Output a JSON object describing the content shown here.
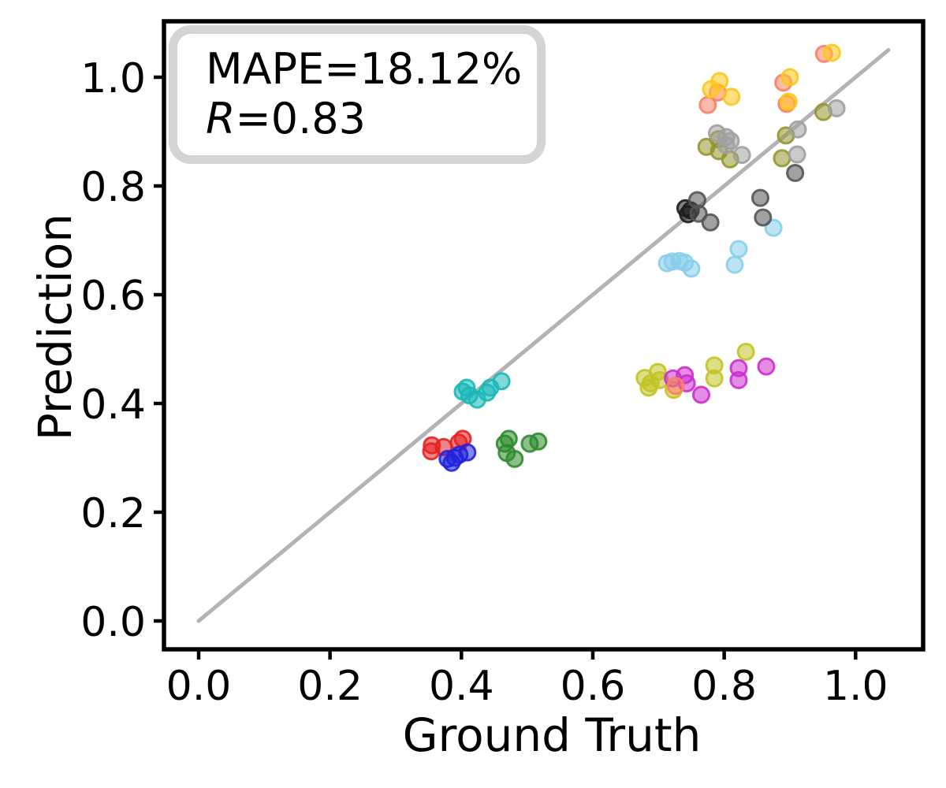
{
  "figure": {
    "xlabel": "Ground Truth",
    "ylabel": "Prediction"
  },
  "annotation": {
    "line1": "MAPE=18.12%",
    "r_symbol": "R",
    "r_value": "=0.83",
    "box_border_color": "#d4d4d4"
  },
  "chart_data": {
    "type": "scatter",
    "title": "",
    "xlabel": "Ground Truth",
    "ylabel": "Prediction",
    "xlim": [
      -0.05,
      1.1
    ],
    "ylim": [
      -0.05,
      1.1
    ],
    "xticks": [
      "0.0",
      "0.2",
      "0.4",
      "0.6",
      "0.8",
      "1.0"
    ],
    "yticks": [
      "0.0",
      "0.2",
      "0.4",
      "0.6",
      "0.8",
      "1.0"
    ],
    "grid": false,
    "legend": "none",
    "stats": {
      "mape_percent": 18.12,
      "r": 0.83
    },
    "identity_line": {
      "from": [
        0,
        0
      ],
      "to": [
        1.05,
        1.05
      ],
      "color": "#b3b3b3"
    },
    "marker": {
      "radius_px": 10,
      "fill_opacity": 0.55,
      "stroke_opacity": 0.9,
      "stroke_width": 3
    },
    "axis_color": "#000000",
    "series": [
      {
        "name": "red",
        "color": "#e62222",
        "points": [
          [
            0.355,
            0.323
          ],
          [
            0.354,
            0.312
          ],
          [
            0.373,
            0.32
          ],
          [
            0.396,
            0.328
          ],
          [
            0.402,
            0.335
          ]
        ]
      },
      {
        "name": "blue",
        "color": "#2222dd",
        "points": [
          [
            0.379,
            0.298
          ],
          [
            0.385,
            0.291
          ],
          [
            0.39,
            0.3
          ],
          [
            0.397,
            0.306
          ],
          [
            0.409,
            0.31
          ]
        ]
      },
      {
        "name": "green",
        "color": "#2e8b2e",
        "points": [
          [
            0.466,
            0.326
          ],
          [
            0.469,
            0.309
          ],
          [
            0.472,
            0.335
          ],
          [
            0.481,
            0.298
          ],
          [
            0.504,
            0.326
          ],
          [
            0.517,
            0.33
          ]
        ]
      },
      {
        "name": "cyan",
        "color": "#1ab8b8",
        "points": [
          [
            0.402,
            0.422
          ],
          [
            0.408,
            0.429
          ],
          [
            0.412,
            0.415
          ],
          [
            0.424,
            0.407
          ],
          [
            0.439,
            0.42
          ],
          [
            0.444,
            0.429
          ],
          [
            0.461,
            0.441
          ]
        ]
      },
      {
        "name": "yellow",
        "color": "#c3c326",
        "points": [
          [
            0.679,
            0.447
          ],
          [
            0.685,
            0.429
          ],
          [
            0.688,
            0.437
          ],
          [
            0.699,
            0.458
          ],
          [
            0.702,
            0.443
          ],
          [
            0.723,
            0.425
          ],
          [
            0.785,
            0.47
          ],
          [
            0.785,
            0.446
          ],
          [
            0.833,
            0.495
          ]
        ]
      },
      {
        "name": "magenta",
        "color": "#cc2fcc",
        "points": [
          [
            0.722,
            0.446
          ],
          [
            0.74,
            0.452
          ],
          [
            0.743,
            0.437
          ],
          [
            0.765,
            0.416
          ],
          [
            0.822,
            0.465
          ],
          [
            0.822,
            0.443
          ],
          [
            0.864,
            0.468
          ]
        ]
      },
      {
        "name": "skyblue",
        "color": "#87ceeb",
        "points": [
          [
            0.713,
            0.658
          ],
          [
            0.721,
            0.661
          ],
          [
            0.732,
            0.662
          ],
          [
            0.74,
            0.659
          ],
          [
            0.75,
            0.648
          ],
          [
            0.816,
            0.655
          ],
          [
            0.822,
            0.684
          ],
          [
            0.875,
            0.723
          ]
        ]
      },
      {
        "name": "black",
        "color": "#1c1c1c",
        "points": [
          [
            0.741,
            0.759
          ],
          [
            0.745,
            0.748
          ],
          [
            0.749,
            0.755
          ]
        ]
      },
      {
        "name": "dimgray",
        "color": "#545454",
        "points": [
          [
            0.759,
            0.774
          ],
          [
            0.761,
            0.749
          ],
          [
            0.779,
            0.733
          ],
          [
            0.855,
            0.778
          ],
          [
            0.859,
            0.742
          ],
          [
            0.908,
            0.824
          ]
        ]
      },
      {
        "name": "olive",
        "color": "#96962e",
        "points": [
          [
            0.773,
            0.872
          ],
          [
            0.791,
            0.886
          ],
          [
            0.792,
            0.864
          ],
          [
            0.809,
            0.849
          ],
          [
            0.888,
            0.851
          ],
          [
            0.894,
            0.893
          ],
          [
            0.951,
            0.936
          ]
        ]
      },
      {
        "name": "gray",
        "color": "#a0a0a0",
        "points": [
          [
            0.789,
            0.897
          ],
          [
            0.803,
            0.89
          ],
          [
            0.803,
            0.875
          ],
          [
            0.81,
            0.883
          ],
          [
            0.827,
            0.857
          ],
          [
            0.911,
            0.858
          ],
          [
            0.912,
            0.904
          ],
          [
            0.971,
            0.943
          ]
        ]
      },
      {
        "name": "salmon",
        "color": "#fa8266",
        "points": [
          [
            0.726,
            0.432
          ],
          [
            0.775,
            0.949
          ],
          [
            0.79,
            0.972
          ],
          [
            0.89,
            0.99
          ],
          [
            0.895,
            0.951
          ],
          [
            0.952,
            1.043
          ]
        ]
      },
      {
        "name": "gold",
        "color": "#ffc61a",
        "points": [
          [
            0.78,
            0.978
          ],
          [
            0.793,
            0.993
          ],
          [
            0.811,
            0.964
          ],
          [
            0.898,
            0.955
          ],
          [
            0.9,
            1.0
          ],
          [
            0.964,
            1.045
          ]
        ]
      }
    ]
  }
}
